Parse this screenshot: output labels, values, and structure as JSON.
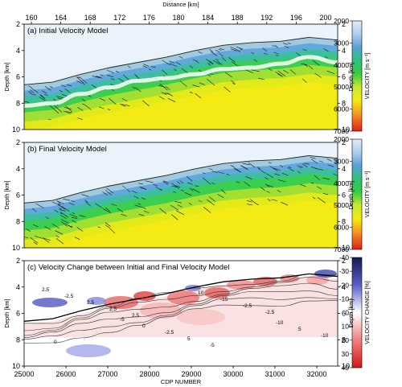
{
  "chart_data": [
    {
      "type": "heatmap",
      "title": "(a) Initial Velocity Model",
      "top_axis": {
        "label": "Distance [km]",
        "ticks": [
          "160",
          "164",
          "168",
          "172",
          "176",
          "180",
          "184",
          "188",
          "192",
          "196",
          "200"
        ]
      },
      "ylabel": "Depth [km]",
      "ylim": [
        10,
        2
      ],
      "y_ticks": [
        "2",
        "4",
        "6",
        "8",
        "10"
      ],
      "colorbar": {
        "label": "VELOCITY [m s⁻¹]",
        "range": [
          2000,
          7000
        ],
        "ticks": [
          "2000",
          "3000",
          "4000",
          "5000",
          "6000",
          "7000"
        ]
      },
      "seafloor_depth_km": [
        6.6,
        6.4,
        5.8,
        5.3,
        4.9,
        4.5,
        4.0,
        3.6,
        3.4,
        3.3,
        3.0,
        3.2
      ],
      "overlay_line_depth_km": [
        8.2,
        8.0,
        7.3,
        6.8,
        6.3,
        6.1,
        5.8,
        5.4,
        5.3,
        5.0,
        4.5,
        4.9
      ]
    },
    {
      "type": "heatmap",
      "title": "(b) Final Velocity Model",
      "ylabel": "Depth [km]",
      "ylim": [
        10,
        2
      ],
      "y_ticks": [
        "2",
        "4",
        "6",
        "8",
        "10"
      ],
      "colorbar": {
        "label": "VELOCITY [m s⁻¹]",
        "range": [
          2000,
          7000
        ],
        "ticks": [
          "2000",
          "3000",
          "4000",
          "5000",
          "6000",
          "7000"
        ]
      },
      "seafloor_depth_km": [
        6.6,
        6.4,
        5.8,
        5.3,
        4.9,
        4.5,
        4.0,
        3.6,
        3.4,
        3.3,
        3.0,
        3.2
      ]
    },
    {
      "type": "heatmap",
      "title": "(c) Velocity Change between Initial and Final Velocity Model",
      "xlabel": "CDP NUMBER",
      "x_ticks": [
        "25000",
        "26000",
        "27000",
        "28000",
        "29000",
        "30000",
        "31000",
        "32000"
      ],
      "ylabel": "Depth [km]",
      "ylim": [
        10,
        2
      ],
      "y_ticks": [
        "2",
        "4",
        "6",
        "8",
        "10"
      ],
      "colorbar": {
        "label": "VELOCITY CHANGE [%]",
        "range": [
          -40,
          40
        ],
        "ticks": [
          "-40",
          "-30",
          "-20",
          "-10",
          "0",
          "10",
          "20",
          "30",
          "40"
        ]
      },
      "contour_labels": [
        "2.5",
        "-5",
        "10",
        "-10",
        "-2.5",
        "0",
        "-15",
        "5",
        "2.5",
        "-2.5",
        "-2.5",
        "-10",
        "2.5",
        "5",
        "-2.5",
        "0",
        "2.5",
        "-5"
      ]
    }
  ]
}
